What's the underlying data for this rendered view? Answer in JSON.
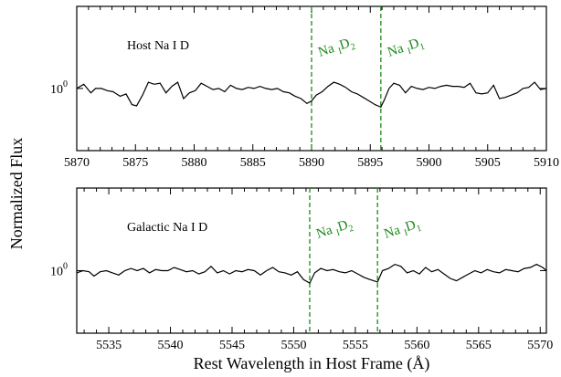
{
  "ylabel": "Normalized Flux",
  "xlabel": "Rest Wavelength in Host Frame (Å)",
  "ytick_label": "10",
  "ytick_exp": "0",
  "line_color": "#1a8a1a",
  "chart_data": [
    {
      "type": "line",
      "title": "Host Na I D",
      "xlim": [
        5870,
        5910
      ],
      "yscale": "log",
      "ytick": 1,
      "ylim": [
        0.56,
        2.15
      ],
      "xticks": [
        5870,
        5875,
        5880,
        5885,
        5890,
        5895,
        5900,
        5905,
        5910
      ],
      "lines": [
        {
          "x": 5890.0,
          "label": "Na",
          "sub": "I",
          "sup": "D",
          "sub2": "2"
        },
        {
          "x": 5895.9,
          "label": "Na",
          "sub": "I",
          "sup": "D",
          "sub2": "1"
        }
      ],
      "series": [
        {
          "x": [
            5870.0,
            5870.6,
            5871.2,
            5871.6,
            5872.1,
            5872.6,
            5873.1,
            5873.7,
            5874.2,
            5874.7,
            5875.1,
            5875.6,
            5876.1,
            5876.6,
            5877.1,
            5877.6,
            5878.1,
            5878.6,
            5879.1,
            5879.6,
            5880.1,
            5880.6,
            5881.1,
            5881.6,
            5882.1,
            5882.6,
            5883.1,
            5883.6,
            5884.1,
            5884.6,
            5885.1,
            5885.6,
            5886.1,
            5886.6,
            5887.1,
            5887.6,
            5888.1,
            5888.6,
            5889.1,
            5889.6,
            5890.0,
            5890.4,
            5890.9,
            5891.4,
            5891.9,
            5892.4,
            5892.9,
            5893.4,
            5893.9,
            5894.4,
            5894.9,
            5895.4,
            5895.9,
            5896.2,
            5896.6,
            5897.0,
            5897.5,
            5898.0,
            5898.5,
            5899.0,
            5899.5,
            5900.0,
            5900.5,
            5901.0,
            5901.5,
            5902.0,
            5902.5,
            5903.0,
            5903.5,
            5904.0,
            5904.5,
            5905.0,
            5905.5,
            5906.0,
            5906.5,
            5907.0,
            5907.5,
            5908.0,
            5908.5,
            5909.0,
            5909.5,
            5910.0
          ],
          "y": [
            1.0,
            1.04,
            0.96,
            1.0,
            1.0,
            0.98,
            0.97,
            0.93,
            0.95,
            0.86,
            0.85,
            0.94,
            1.06,
            1.04,
            1.05,
            0.96,
            1.02,
            1.06,
            0.91,
            0.96,
            0.98,
            1.05,
            1.02,
            0.99,
            1.0,
            0.97,
            1.03,
            1.0,
            0.99,
            1.01,
            1.0,
            1.02,
            1.0,
            0.99,
            1.0,
            0.97,
            0.96,
            0.93,
            0.91,
            0.87,
            0.89,
            0.94,
            0.97,
            1.02,
            1.06,
            1.04,
            1.01,
            0.97,
            0.95,
            0.92,
            0.89,
            0.86,
            0.84,
            0.9,
            1.0,
            1.05,
            1.03,
            0.96,
            1.02,
            1.0,
            0.99,
            1.01,
            1.0,
            1.02,
            1.03,
            1.02,
            1.02,
            1.01,
            1.05,
            0.96,
            0.95,
            0.96,
            1.03,
            0.91,
            0.92,
            0.94,
            0.96,
            1.0,
            1.01,
            1.06,
            0.99,
            1.0
          ]
        }
      ]
    },
    {
      "type": "line",
      "title": "Galactic Na I D",
      "xlim": [
        5532.4,
        5570.5
      ],
      "yscale": "log",
      "ytick": 1,
      "ylim": [
        0.56,
        2.15
      ],
      "xticks": [
        5535,
        5540,
        5545,
        5550,
        5555,
        5560,
        5565,
        5570
      ],
      "lines": [
        {
          "x": 5551.3,
          "label": "Na",
          "sub": "I",
          "sup": "D",
          "sub2": "2"
        },
        {
          "x": 5556.8,
          "label": "Na",
          "sub": "I",
          "sup": "D",
          "sub2": "1"
        }
      ],
      "series": [
        {
          "x": [
            5532.4,
            5532.9,
            5533.4,
            5533.8,
            5534.3,
            5534.8,
            5535.3,
            5535.8,
            5536.3,
            5536.8,
            5537.3,
            5537.8,
            5538.3,
            5538.8,
            5539.3,
            5539.8,
            5540.3,
            5540.8,
            5541.3,
            5541.8,
            5542.3,
            5542.8,
            5543.3,
            5543.8,
            5544.3,
            5544.8,
            5545.3,
            5545.8,
            5546.3,
            5546.8,
            5547.3,
            5547.8,
            5548.3,
            5548.8,
            5549.3,
            5549.8,
            5550.3,
            5550.8,
            5551.3,
            5551.7,
            5552.2,
            5552.7,
            5553.2,
            5553.7,
            5554.2,
            5554.7,
            5555.2,
            5555.7,
            5556.2,
            5556.8,
            5557.2,
            5557.7,
            5558.2,
            5558.7,
            5559.2,
            5559.7,
            5560.2,
            5560.7,
            5561.2,
            5561.7,
            5562.2,
            5562.7,
            5563.2,
            5563.7,
            5564.2,
            5564.7,
            5565.2,
            5565.7,
            5566.2,
            5566.7,
            5567.2,
            5567.7,
            5568.2,
            5568.7,
            5569.2,
            5569.7,
            5570.2,
            5570.5
          ],
          "y": [
            0.98,
            1.0,
            0.99,
            0.95,
            0.99,
            1.0,
            0.98,
            0.96,
            1.0,
            1.02,
            1.0,
            1.02,
            0.98,
            1.01,
            1.0,
            1.0,
            1.03,
            1.01,
            0.99,
            1.0,
            0.97,
            0.99,
            1.04,
            0.98,
            1.0,
            0.97,
            1.0,
            0.99,
            1.01,
            1.0,
            0.96,
            1.0,
            1.03,
            0.99,
            0.98,
            0.96,
            0.99,
            0.92,
            0.89,
            0.98,
            1.02,
            1.0,
            1.01,
            0.99,
            0.98,
            1.0,
            0.97,
            0.94,
            0.92,
            0.9,
            1.0,
            1.02,
            1.06,
            1.04,
            0.98,
            1.0,
            0.97,
            1.03,
            0.99,
            1.01,
            0.97,
            0.93,
            0.91,
            0.94,
            0.97,
            1.0,
            0.98,
            1.01,
            0.99,
            0.98,
            1.01,
            1.0,
            0.99,
            1.02,
            1.03,
            1.06,
            1.03,
            1.0
          ]
        }
      ]
    }
  ]
}
